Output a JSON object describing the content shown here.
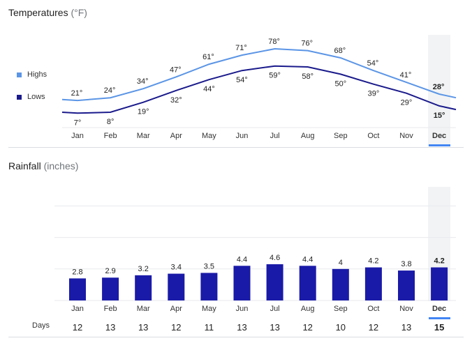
{
  "chart_data": [
    {
      "type": "line",
      "title": "Temperatures",
      "unit": "(°F)",
      "categories": [
        "Jan",
        "Feb",
        "Mar",
        "Apr",
        "May",
        "Jun",
        "Jul",
        "Aug",
        "Sep",
        "Oct",
        "Nov",
        "Dec"
      ],
      "highlight_index": 11,
      "series": [
        {
          "name": "Highs",
          "color": "#5b95e6",
          "values": [
            21,
            24,
            34,
            47,
            61,
            71,
            78,
            76,
            68,
            54,
            41,
            28
          ]
        },
        {
          "name": "Lows",
          "color": "#1a1a8c",
          "values": [
            7,
            8,
            19,
            32,
            44,
            54,
            59,
            58,
            50,
            39,
            29,
            15
          ]
        }
      ],
      "label_suffix": "°"
    },
    {
      "type": "bar",
      "title": "Rainfall",
      "unit": "(inches)",
      "categories": [
        "Jan",
        "Feb",
        "Mar",
        "Apr",
        "May",
        "Jun",
        "Jul",
        "Aug",
        "Sep",
        "Oct",
        "Nov",
        "Dec"
      ],
      "values": [
        2.8,
        2.9,
        3.2,
        3.4,
        3.5,
        4.4,
        4.6,
        4.4,
        4,
        4.2,
        3.8,
        4.2
      ],
      "labels": [
        "2.8",
        "2.9",
        "3.2",
        "3.4",
        "3.5",
        "4.4",
        "4.6",
        "4.4",
        "4",
        "4.2",
        "3.8",
        "4.2"
      ],
      "color": "#1a1aa8",
      "highlight_index": 11
    }
  ],
  "days": {
    "label": "Days",
    "values": [
      "12",
      "13",
      "13",
      "12",
      "11",
      "13",
      "13",
      "12",
      "10",
      "12",
      "13",
      "15"
    ]
  },
  "legend": {
    "highs": "Highs",
    "lows": "Lows"
  },
  "colors": {
    "highlight_bg": "#f1f3f4",
    "highlight_bar": "#4285f4",
    "grid": "#e8eaed"
  }
}
